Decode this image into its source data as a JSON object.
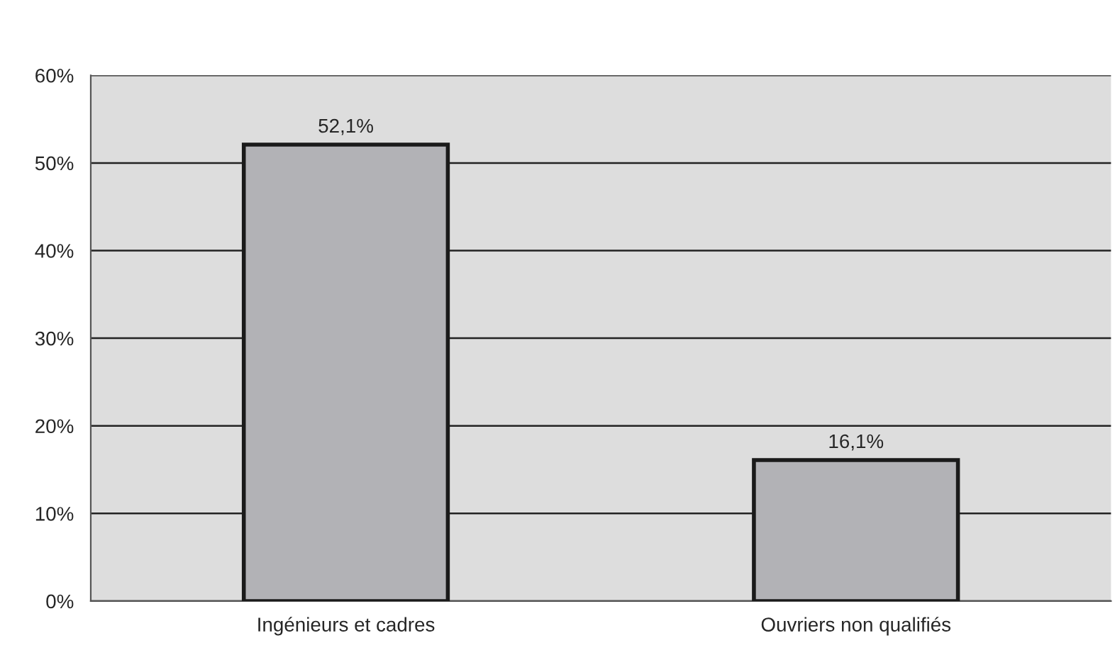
{
  "chart_data": {
    "type": "bar",
    "categories": [
      "Ingénieurs et cadres",
      "Ouvriers non qualifiés"
    ],
    "values": [
      52.1,
      16.1
    ],
    "value_labels": [
      "52,1%",
      "16,1%"
    ],
    "color": "#b2b2b6",
    "ylim": [
      0,
      60
    ],
    "yticks": [
      {
        "value": 0,
        "label": "0%"
      },
      {
        "value": 10,
        "label": "10%"
      },
      {
        "value": 20,
        "label": "20%"
      },
      {
        "value": 30,
        "label": "30%"
      },
      {
        "value": 40,
        "label": "40%"
      },
      {
        "value": 50,
        "label": "50%"
      },
      {
        "value": 60,
        "label": "60%"
      }
    ],
    "grid": "y",
    "legend": false
  }
}
